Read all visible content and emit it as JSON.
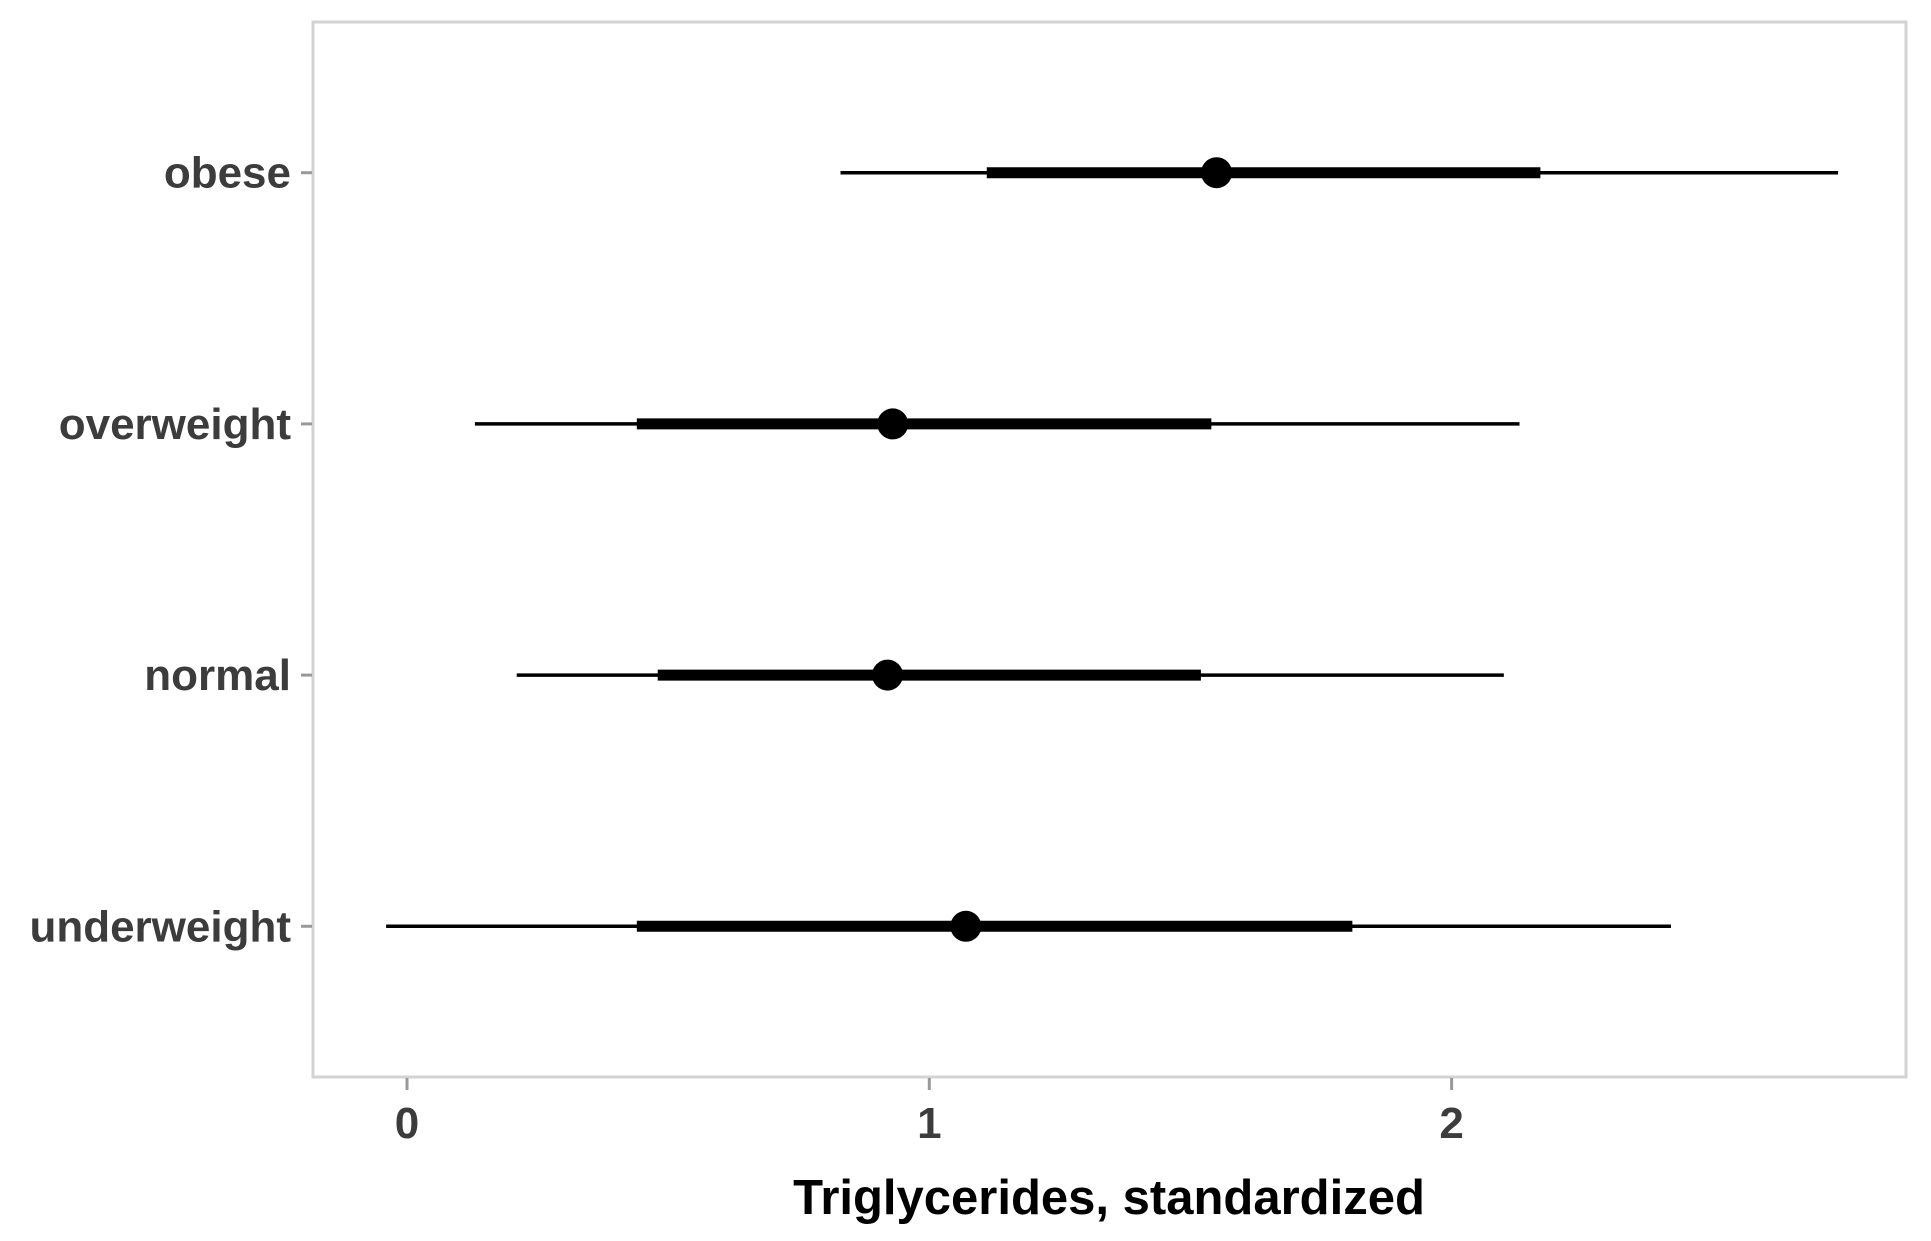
{
  "figure": {
    "background": "#ffffff",
    "panel_border_color": "#d3d3d3",
    "tick_color": "#999999",
    "axis_text_color": "#3c3c3c",
    "axis_title_color": "#000000",
    "series_color": "#000000"
  },
  "chart_data": {
    "type": "pointrange",
    "title": "",
    "xlabel": "Triglycerides, standardized",
    "ylabel": "",
    "grid": false,
    "legend": null,
    "x_ticks": [
      0,
      1,
      2
    ],
    "xlim": [
      -0.18,
      2.87
    ],
    "categories": [
      "obese",
      "overweight",
      "normal",
      "underweight"
    ],
    "rows": [
      {
        "label": "obese",
        "point": 1.55,
        "inner_low": 1.11,
        "inner_high": 2.17,
        "outer_low": 0.83,
        "outer_high": 2.74
      },
      {
        "label": "overweight",
        "point": 0.93,
        "inner_low": 0.44,
        "inner_high": 1.54,
        "outer_low": 0.13,
        "outer_high": 2.13
      },
      {
        "label": "normal",
        "point": 0.92,
        "inner_low": 0.48,
        "inner_high": 1.52,
        "outer_low": 0.21,
        "outer_high": 2.1
      },
      {
        "label": "underweight",
        "point": 1.07,
        "inner_low": 0.44,
        "inner_high": 1.81,
        "outer_low": -0.04,
        "outer_high": 2.42
      }
    ]
  }
}
